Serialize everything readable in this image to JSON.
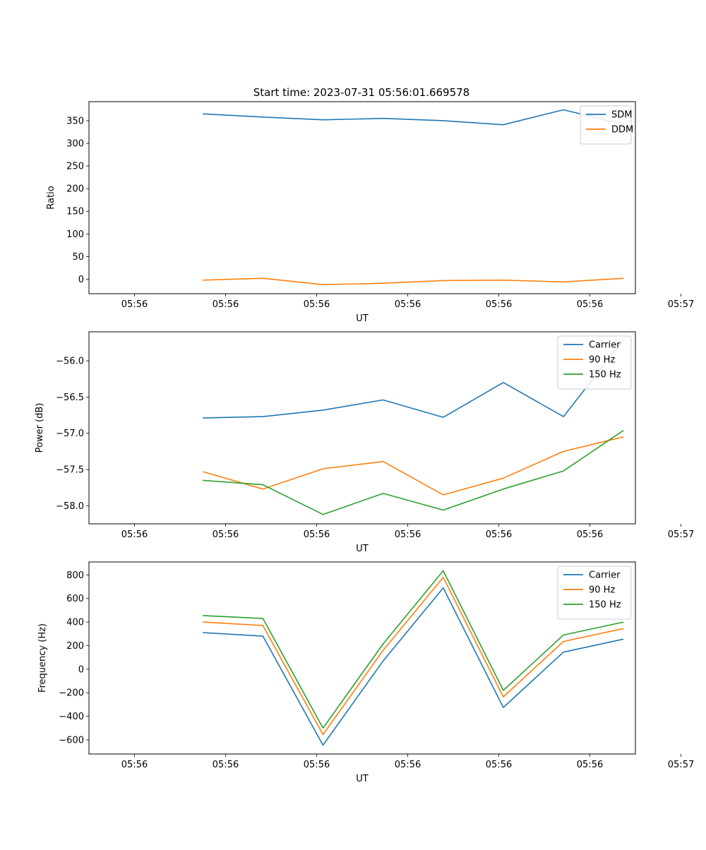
{
  "figure_title": "Start time: 2023-07-31 05:56:01.669578",
  "colors": {
    "blue": "#1f77b4",
    "orange": "#ff7f0e",
    "green": "#2ca02c"
  },
  "chart_data": [
    {
      "type": "line",
      "title": "Start time: 2023-07-31 05:56:01.669578",
      "xlabel": "UT",
      "ylabel": "Ratio",
      "x": [
        0.75,
        1.41,
        2.07,
        2.73,
        3.39,
        4.05,
        4.71,
        5.37
      ],
      "xlim": [
        -0.5,
        5.5
      ],
      "x_ticks": [
        0,
        1,
        2,
        3,
        4,
        5,
        6
      ],
      "x_tick_labels": [
        "05:56",
        "05:56",
        "05:56",
        "05:56",
        "05:56",
        "05:56",
        "05:57"
      ],
      "ylim": [
        -32,
        392
      ],
      "y_ticks": [
        0,
        50,
        100,
        150,
        200,
        250,
        300,
        350
      ],
      "y_tick_labels": [
        "0",
        "50",
        "100",
        "150",
        "200",
        "250",
        "300",
        "350"
      ],
      "legend_position": "top-right",
      "series": [
        {
          "name": "SDM",
          "color": "#1f77b4",
          "values": [
            365,
            358,
            352,
            355,
            350,
            341,
            374,
            342
          ]
        },
        {
          "name": "DDM",
          "color": "#ff7f0e",
          "values": [
            -2,
            2,
            -12,
            -9,
            -3,
            -2,
            -6,
            2
          ]
        }
      ]
    },
    {
      "type": "line",
      "title": "",
      "xlabel": "UT",
      "ylabel": "Power (dB)",
      "x": [
        0.75,
        1.41,
        2.07,
        2.73,
        3.39,
        4.05,
        4.71,
        5.37
      ],
      "xlim": [
        -0.5,
        5.5
      ],
      "x_ticks": [
        0,
        1,
        2,
        3,
        4,
        5,
        6
      ],
      "x_tick_labels": [
        "05:56",
        "05:56",
        "05:56",
        "05:56",
        "05:56",
        "05:56",
        "05:57"
      ],
      "ylim": [
        -58.25,
        -55.6
      ],
      "y_ticks": [
        -58.0,
        -57.5,
        -57.0,
        -56.5,
        -56.0
      ],
      "y_tick_labels": [
        "−58.0",
        "−57.5",
        "−57.0",
        "−56.5",
        "−56.0"
      ],
      "legend_position": "top-right",
      "series": [
        {
          "name": "Carrier",
          "color": "#1f77b4",
          "values": [
            -56.79,
            -56.77,
            -56.68,
            -56.54,
            -56.78,
            -56.3,
            -56.77,
            -55.71
          ]
        },
        {
          "name": "90 Hz",
          "color": "#ff7f0e",
          "values": [
            -57.53,
            -57.77,
            -57.49,
            -57.39,
            -57.85,
            -57.62,
            -57.25,
            -57.05
          ]
        },
        {
          "name": "150 Hz",
          "color": "#2ca02c",
          "values": [
            -57.65,
            -57.71,
            -58.12,
            -57.83,
            -58.06,
            -57.77,
            -57.52,
            -56.96
          ]
        }
      ]
    },
    {
      "type": "line",
      "title": "",
      "xlabel": "UT",
      "ylabel": "Frequency (Hz)",
      "x": [
        0.75,
        1.41,
        2.07,
        2.73,
        3.39,
        4.05,
        4.71,
        5.37
      ],
      "xlim": [
        -0.5,
        5.5
      ],
      "x_ticks": [
        0,
        1,
        2,
        3,
        4,
        5,
        6
      ],
      "x_tick_labels": [
        "05:56",
        "05:56",
        "05:56",
        "05:56",
        "05:56",
        "05:56",
        "05:57"
      ],
      "ylim": [
        -720,
        910
      ],
      "y_ticks": [
        -600,
        -400,
        -200,
        0,
        200,
        400,
        600,
        800
      ],
      "y_tick_labels": [
        "−600",
        "−400",
        "−200",
        "0",
        "200",
        "400",
        "600",
        "800"
      ],
      "legend_position": "top-right",
      "series": [
        {
          "name": "Carrier",
          "color": "#1f77b4",
          "values": [
            310,
            280,
            -645,
            70,
            690,
            -325,
            145,
            255
          ]
        },
        {
          "name": "90 Hz",
          "color": "#ff7f0e",
          "values": [
            400,
            370,
            -555,
            160,
            780,
            -235,
            235,
            345
          ]
        },
        {
          "name": "150 Hz",
          "color": "#2ca02c",
          "values": [
            455,
            430,
            -500,
            215,
            835,
            -180,
            290,
            400
          ]
        }
      ]
    }
  ]
}
